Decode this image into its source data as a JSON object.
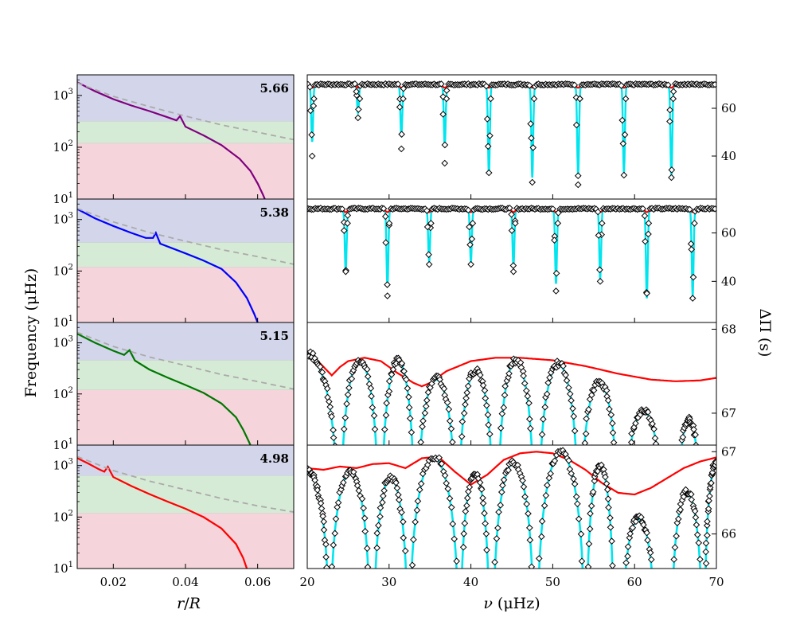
{
  "chart_data": [
    {
      "type": "line",
      "panel": "left-1",
      "annotation": "5.66",
      "xlim": [
        0.01,
        0.07
      ],
      "ylim": [
        10,
        2500
      ],
      "yscale": "log",
      "bands": [
        {
          "name": "",
          "y0": 10,
          "y1": 120,
          "color": "#f5d5db"
        },
        {
          "name": "",
          "y0": 120,
          "y1": 320,
          "color": "#d6ebd6"
        },
        {
          "name": "",
          "y0": 320,
          "y1": 2500,
          "color": "#d3d6ea"
        }
      ],
      "series": [
        {
          "name": "",
          "style": "solid",
          "color": "#800080",
          "x": [
            0.01,
            0.015,
            0.02,
            0.025,
            0.03,
            0.035,
            0.0375,
            0.0385,
            0.04,
            0.045,
            0.05,
            0.055,
            0.058,
            0.06,
            0.0615,
            0.062
          ],
          "y": [
            1800,
            1200,
            850,
            640,
            500,
            380,
            330,
            400,
            250,
            170,
            110,
            60,
            35,
            20,
            12,
            10
          ]
        },
        {
          "name": "",
          "style": "dashed",
          "color": "#aaaaaa",
          "x": [
            0.01,
            0.02,
            0.03,
            0.04,
            0.05,
            0.06,
            0.07
          ],
          "y": [
            1750,
            960,
            610,
            400,
            270,
            195,
            140
          ]
        }
      ]
    },
    {
      "type": "line",
      "panel": "left-2",
      "annotation": "5.38",
      "xlim": [
        0.01,
        0.07
      ],
      "ylim": [
        10,
        2500
      ],
      "yscale": "log",
      "bands": [
        {
          "name": "",
          "y0": 10,
          "y1": 120,
          "color": "#f5d5db"
        },
        {
          "name": "",
          "y0": 120,
          "y1": 360,
          "color": "#d6ebd6"
        },
        {
          "name": "",
          "y0": 360,
          "y1": 2500,
          "color": "#d3d6ea"
        }
      ],
      "series": [
        {
          "name": "",
          "style": "solid",
          "color": "#0000ff",
          "x": [
            0.01,
            0.015,
            0.02,
            0.025,
            0.029,
            0.031,
            0.0318,
            0.033,
            0.04,
            0.045,
            0.05,
            0.054,
            0.057,
            0.059,
            0.06
          ],
          "y": [
            1600,
            1050,
            750,
            550,
            440,
            440,
            550,
            340,
            220,
            160,
            110,
            60,
            30,
            15,
            10
          ]
        },
        {
          "name": "",
          "style": "dashed",
          "color": "#aaaaaa",
          "x": [
            0.01,
            0.02,
            0.03,
            0.04,
            0.05,
            0.06,
            0.07
          ],
          "y": [
            1650,
            900,
            560,
            380,
            260,
            190,
            135
          ]
        }
      ]
    },
    {
      "type": "line",
      "panel": "left-3",
      "annotation": "5.15",
      "xlim": [
        0.01,
        0.07
      ],
      "ylim": [
        10,
        2500
      ],
      "yscale": "log",
      "bands": [
        {
          "name": "",
          "y0": 10,
          "y1": 120,
          "color": "#f5d5db"
        },
        {
          "name": "",
          "y0": 120,
          "y1": 460,
          "color": "#d6ebd6"
        },
        {
          "name": "",
          "y0": 460,
          "y1": 2500,
          "color": "#d3d6ea"
        }
      ],
      "series": [
        {
          "name": "",
          "style": "solid",
          "color": "#007700",
          "x": [
            0.01,
            0.015,
            0.02,
            0.023,
            0.0245,
            0.026,
            0.03,
            0.035,
            0.04,
            0.045,
            0.05,
            0.054,
            0.056,
            0.0575,
            0.058
          ],
          "y": [
            1500,
            1000,
            700,
            580,
            720,
            450,
            300,
            210,
            150,
            105,
            65,
            35,
            20,
            12,
            10
          ]
        },
        {
          "name": "",
          "style": "dashed",
          "color": "#aaaaaa",
          "x": [
            0.01,
            0.02,
            0.03,
            0.04,
            0.05,
            0.06,
            0.07
          ],
          "y": [
            1600,
            850,
            530,
            360,
            240,
            175,
            125
          ]
        }
      ]
    },
    {
      "type": "line",
      "panel": "left-4",
      "annotation": "4.98",
      "xlim": [
        0.01,
        0.07
      ],
      "ylim": [
        10,
        2500
      ],
      "yscale": "log",
      "bands": [
        {
          "name": "",
          "y0": 10,
          "y1": 120,
          "color": "#f5d5db"
        },
        {
          "name": "",
          "y0": 120,
          "y1": 640,
          "color": "#d6ebd6"
        },
        {
          "name": "",
          "y0": 640,
          "y1": 2500,
          "color": "#d3d6ea"
        }
      ],
      "series": [
        {
          "name": "",
          "style": "solid",
          "color": "#ff0000",
          "x": [
            0.01,
            0.013,
            0.016,
            0.0175,
            0.0185,
            0.02,
            0.025,
            0.03,
            0.035,
            0.04,
            0.045,
            0.05,
            0.054,
            0.056,
            0.057
          ],
          "y": [
            1400,
            1100,
            850,
            760,
            950,
            600,
            400,
            280,
            200,
            145,
            100,
            60,
            30,
            16,
            10
          ]
        },
        {
          "name": "",
          "style": "dashed",
          "color": "#aaaaaa",
          "x": [
            0.01,
            0.02,
            0.03,
            0.04,
            0.05,
            0.06,
            0.07
          ],
          "y": [
            1500,
            800,
            500,
            340,
            230,
            165,
            125
          ]
        }
      ]
    },
    {
      "type": "line",
      "panel": "right-1",
      "xlim": [
        20,
        70
      ],
      "ylim": [
        22,
        74
      ],
      "mode": "dips",
      "baseline": 70,
      "envelope_bump": 0.0,
      "dips": [
        {
          "x": 20.6,
          "min": 46,
          "diamond": 40
        },
        {
          "x": 26.2,
          "min": 58,
          "diamond": 56
        },
        {
          "x": 31.5,
          "min": 48,
          "diamond": 43
        },
        {
          "x": 36.8,
          "min": 44,
          "diamond": 37
        },
        {
          "x": 42.2,
          "min": 32,
          "diamond": 33
        },
        {
          "x": 47.5,
          "min": 31,
          "diamond": 29
        },
        {
          "x": 53.1,
          "min": 32,
          "diamond": 28
        },
        {
          "x": 58.7,
          "min": 33,
          "diamond": 32
        },
        {
          "x": 64.5,
          "min": 32,
          "diamond": 31
        }
      ],
      "series": [
        {
          "name": "",
          "color": "#ff0000",
          "role": "envelope"
        },
        {
          "name": "",
          "color": "#00e5ee",
          "role": "full"
        },
        {
          "name": "",
          "color": "#000000",
          "role": "diamonds"
        }
      ],
      "yticks": [
        40,
        60
      ]
    },
    {
      "type": "line",
      "panel": "right-2",
      "xlim": [
        20,
        70
      ],
      "ylim": [
        23,
        74
      ],
      "mode": "dips",
      "baseline": 70,
      "envelope_bump": 0.0,
      "dips": [
        {
          "x": 24.7,
          "min": 44,
          "diamond": 44
        },
        {
          "x": 29.8,
          "min": 38,
          "diamond": 34
        },
        {
          "x": 34.9,
          "min": 48,
          "diamond": 47
        },
        {
          "x": 40.0,
          "min": 48,
          "diamond": 47
        },
        {
          "x": 45.2,
          "min": 46,
          "diamond": 44
        },
        {
          "x": 50.4,
          "min": 39,
          "diamond": 36
        },
        {
          "x": 55.8,
          "min": 41,
          "diamond": 40
        },
        {
          "x": 61.5,
          "min": 33,
          "diamond": 35
        },
        {
          "x": 67.1,
          "min": 34,
          "diamond": 33
        }
      ],
      "series": [
        {
          "name": "",
          "color": "#ff0000",
          "role": "envelope"
        },
        {
          "name": "",
          "color": "#00e5ee",
          "role": "full"
        },
        {
          "name": "",
          "color": "#000000",
          "role": "diamonds"
        }
      ],
      "yticks": [
        40,
        60
      ]
    },
    {
      "type": "line",
      "panel": "right-3",
      "xlim": [
        20,
        70
      ],
      "ylim": [
        66.62,
        68.08
      ],
      "mode": "arches",
      "envelope": {
        "x": [
          20,
          21,
          22,
          23,
          24,
          25,
          27,
          29,
          31,
          33,
          34,
          35,
          37,
          40,
          43,
          46,
          50,
          54,
          58,
          62,
          65,
          68,
          70
        ],
        "y": [
          67.74,
          67.65,
          67.55,
          67.45,
          67.55,
          67.62,
          67.66,
          67.62,
          67.48,
          67.36,
          67.32,
          67.36,
          67.5,
          67.62,
          67.66,
          67.66,
          67.63,
          67.56,
          67.47,
          67.4,
          67.38,
          67.39,
          67.42
        ]
      },
      "arches": [
        {
          "x0": 20,
          "x1": 23.6,
          "peak": 67.7,
          "left_open": true
        },
        {
          "x0": 24.2,
          "x1": 28.6,
          "peak": 67.62
        },
        {
          "x0": 29.2,
          "x1": 33.0,
          "peak": 67.62
        },
        {
          "x0": 33.6,
          "x1": 38.0,
          "peak": 67.4
        },
        {
          "x0": 38.6,
          "x1": 42.6,
          "peak": 67.5
        },
        {
          "x0": 43.4,
          "x1": 47.6,
          "peak": 67.62
        },
        {
          "x0": 48.4,
          "x1": 53.0,
          "peak": 67.58
        },
        {
          "x0": 53.6,
          "x1": 57.8,
          "peak": 67.36
        },
        {
          "x0": 59.0,
          "x1": 63.2,
          "peak": 67.02
        },
        {
          "x0": 65.4,
          "x1": 67.9,
          "peak": 66.92
        }
      ],
      "series": [
        {
          "name": "",
          "color": "#ff0000",
          "role": "envelope"
        },
        {
          "name": "",
          "color": "#00e5ee",
          "role": "full"
        },
        {
          "name": "",
          "color": "#000000",
          "role": "diamonds"
        }
      ],
      "yticks": [
        67,
        68
      ]
    },
    {
      "type": "line",
      "panel": "right-4",
      "xlim": [
        20,
        70
      ],
      "ylim": [
        65.58,
        67.08
      ],
      "mode": "arches",
      "envelope": {
        "x": [
          20,
          22,
          24,
          26,
          28,
          30,
          32,
          34,
          36,
          38,
          40,
          42,
          44,
          46,
          48,
          50,
          52,
          54,
          56,
          58,
          60,
          62,
          64,
          66,
          68,
          70
        ],
        "y": [
          66.8,
          66.78,
          66.82,
          66.8,
          66.85,
          66.86,
          66.8,
          66.92,
          66.94,
          66.76,
          66.6,
          66.72,
          66.9,
          66.98,
          67.0,
          66.98,
          66.9,
          66.78,
          66.62,
          66.5,
          66.48,
          66.56,
          66.68,
          66.8,
          66.88,
          66.93
        ]
      },
      "arches": [
        {
          "x0": 20,
          "x1": 22.6,
          "peak": 66.76,
          "left_open": true
        },
        {
          "x0": 22.9,
          "x1": 27.6,
          "peak": 66.75
        },
        {
          "x0": 28.2,
          "x1": 32.2,
          "peak": 66.68
        },
        {
          "x0": 32.6,
          "x1": 38.4,
          "peak": 66.92
        },
        {
          "x0": 38.8,
          "x1": 42.2,
          "peak": 66.72
        },
        {
          "x0": 42.8,
          "x1": 47.6,
          "peak": 66.86
        },
        {
          "x0": 48.2,
          "x1": 53.8,
          "peak": 66.98
        },
        {
          "x0": 54.2,
          "x1": 57.4,
          "peak": 66.82
        },
        {
          "x0": 58.6,
          "x1": 62.4,
          "peak": 66.18
        },
        {
          "x0": 64.6,
          "x1": 68.2,
          "peak": 66.5
        },
        {
          "x0": 68.6,
          "x1": 70.0,
          "peak": 66.86,
          "right_open": true
        }
      ],
      "series": [
        {
          "name": "",
          "color": "#ff0000",
          "role": "envelope"
        },
        {
          "name": "",
          "color": "#00e5ee",
          "role": "full"
        },
        {
          "name": "",
          "color": "#000000",
          "role": "diamonds"
        }
      ],
      "yticks": [
        66,
        67
      ]
    }
  ],
  "labels": {
    "left_ylabel": "Frequency (μHz)",
    "left_xlabel_r": "r",
    "left_xlabel_slash": "/",
    "left_xlabel_R": "R",
    "right_xlabel_nu": "ν",
    "right_xlabel_unit": " (μHz)",
    "right_ylabel": "ΔΠ (s)"
  },
  "left_xticks": [
    "0.02",
    "0.04",
    "0.06"
  ],
  "left_ytick_exponents": [
    "1",
    "2",
    "3"
  ],
  "right_xticks": [
    "20",
    "30",
    "40",
    "50",
    "60",
    "70"
  ]
}
